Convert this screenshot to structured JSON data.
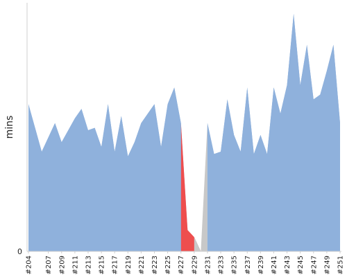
{
  "chart_data": {
    "type": "area",
    "ylabel": "mins",
    "y_ticks": [
      "0"
    ],
    "ylim": [
      0,
      100
    ],
    "x": [
      "#204",
      "#205",
      "#206",
      "#207",
      "#208",
      "#209",
      "#210",
      "#211",
      "#212",
      "#213",
      "#214",
      "#215",
      "#216",
      "#217",
      "#218",
      "#219",
      "#220",
      "#221",
      "#222",
      "#223",
      "#224",
      "#225",
      "#226",
      "#227",
      "#228",
      "#229",
      "#230",
      "#231",
      "#232",
      "#233",
      "#234",
      "#235",
      "#236",
      "#237",
      "#238",
      "#239",
      "#240",
      "#241",
      "#242",
      "#243",
      "#244",
      "#245",
      "#246",
      "#247",
      "#248",
      "#249",
      "#250",
      "#251"
    ],
    "x_tick_labels": [
      "#204",
      "#207",
      "#209",
      "#211",
      "#213",
      "#215",
      "#217",
      "#219",
      "#221",
      "#223",
      "#225",
      "#227",
      "#229",
      "#231",
      "#233",
      "#235",
      "#237",
      "#239",
      "#241",
      "#243",
      "#245",
      "#247",
      "#249",
      "#251"
    ],
    "values": [
      62,
      52,
      42,
      48,
      54,
      46,
      51,
      56,
      60,
      51,
      52,
      44,
      62,
      42,
      57,
      40,
      46,
      54,
      58,
      62,
      44,
      62,
      69,
      54,
      9,
      6,
      0,
      54,
      41,
      42,
      64,
      49,
      42,
      69,
      41,
      49,
      41,
      69,
      58,
      70,
      100,
      70,
      87,
      64,
      66,
      76,
      87,
      54
    ],
    "failed_builds": [
      "#228",
      "#229"
    ],
    "aborted_builds": [
      "#230"
    ],
    "colors": {
      "normal": "#8fb1dc",
      "failed": "#ee4e4e",
      "aborted": "#c8c8c8",
      "axis": "#cfcfcf"
    }
  }
}
